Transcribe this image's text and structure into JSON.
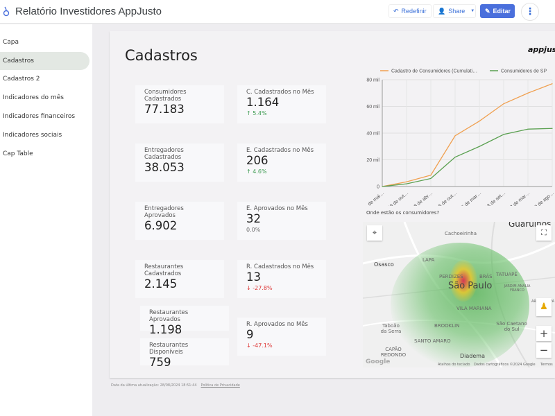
{
  "header": {
    "title": "Relatório Investidores AppJusto",
    "reset_label": "Redefinir",
    "share_label": "Share",
    "edit_label": "Editar",
    "more_icon": "⋮"
  },
  "sidebar": {
    "items": [
      {
        "label": "Capa"
      },
      {
        "label": "Cadastros",
        "selected": true
      },
      {
        "label": "Cadastros 2"
      },
      {
        "label": "Indicadores do mês"
      },
      {
        "label": "Indicadores financeiros"
      },
      {
        "label": "Indicadores sociais"
      },
      {
        "label": "Cap Table"
      }
    ]
  },
  "page": {
    "title": "Cadastros",
    "brand": "appjusto"
  },
  "cards": [
    {
      "label": "Consumidores Cadastrados",
      "value": "77.183"
    },
    {
      "label": "C. Cadastrados no Mês",
      "value": "1.164",
      "delta": "5.4%",
      "trend": "up"
    },
    {
      "label": "Entregadores Cadastrados",
      "value": "38.053"
    },
    {
      "label": "E. Cadastrados no Mês",
      "value": "206",
      "delta": "4.6%",
      "trend": "up"
    },
    {
      "label": "Entregadores Aprovados",
      "value": "6.902"
    },
    {
      "label": "E. Aprovados no Mês",
      "value": "32",
      "delta": "0.0%",
      "trend": "none"
    },
    {
      "label": "Restaurantes Cadastrados",
      "value": "2.145"
    },
    {
      "label": "R. Cadastrados no Mês",
      "value": "13",
      "delta": "-27.8%",
      "trend": "down"
    },
    {
      "label": "Restaurantes Aprovados",
      "value": "1.198"
    },
    {
      "label": "Restaurantes Disponíveis",
      "value": "759"
    },
    {
      "label": "R. Aprovados no Mês",
      "value": "9",
      "delta": "-47.1%",
      "trend": "down"
    }
  ],
  "chart_data": {
    "type": "line",
    "x": [
      "… de mai…",
      "29 de out…",
      "18 de abr…",
      "6 de out…",
      "26 de mar…",
      "13 de set…",
      "2 de mar…",
      "20 de ago…"
    ],
    "y_ticks": [
      "0",
      "20 mil",
      "40 mil",
      "60 mil",
      "80 mil"
    ],
    "ylim": [
      0,
      80000
    ],
    "grid": true,
    "legend": "top",
    "series": [
      {
        "name": "Cadastro de Consumidores (Cumulati…",
        "color": "#f0a050",
        "values": [
          0,
          3500,
          8500,
          38000,
          49000,
          62000,
          70000,
          77000
        ]
      },
      {
        "name": "Consumidores de SP",
        "color": "#5aa050",
        "values": [
          0,
          2000,
          6000,
          22000,
          30000,
          39000,
          43000,
          43500
        ]
      }
    ]
  },
  "map": {
    "caption": "Onde estão os consumidores?",
    "labels": [
      "Guarulhos",
      "Cachoeirinha",
      "Osasco",
      "LAPA",
      "PERDIZES",
      "BRÁS",
      "TATUAPÉ",
      "São Paulo",
      "JARDIM ANÁLIA FRANCO",
      "ARICANDUVA",
      "VILA MARIANA",
      "Taboão da Serra",
      "BROOKLIN",
      "São Caetano do Sul",
      "SANTO AMARO",
      "CAPÃO REDONDO",
      "Diadema"
    ],
    "google": "Google",
    "shortcuts": "Atalhos do teclado",
    "mapdata": "Dados cartográficos ©2024 Google",
    "terms": "Termos",
    "zoom_in": "+",
    "zoom_out": "−"
  },
  "footer": {
    "updated": "Data da última atualização: 28/08/2024 18:51:44",
    "privacy": "Política de Privacidade"
  }
}
